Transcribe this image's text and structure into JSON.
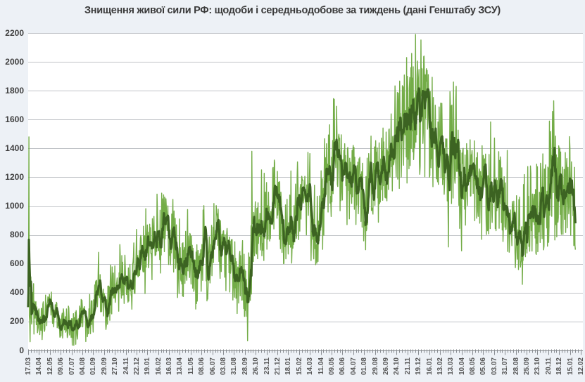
{
  "chart_data": {
    "type": "line",
    "title": "Знищення живої сили РФ: щодоби і середньодобове за тиждень (дані Генштабу ЗСУ)",
    "legend": false,
    "grid": true,
    "y_axis": {
      "min": 0,
      "max": 2200,
      "step": 200,
      "tick_labels": [
        "0",
        "200",
        "400",
        "600",
        "800",
        "1000",
        "1200",
        "1400",
        "1600",
        "1800",
        "2000",
        "2200"
      ]
    },
    "x_axis": {
      "tick_interval_days": 28,
      "minor_tick_days": 7,
      "tick_labels": [
        "17.03",
        "14.04",
        "12.05",
        "09.06",
        "07.07",
        "04.08",
        "01.09",
        "29.09",
        "27.10",
        "24.11",
        "22.12",
        "19.01",
        "16.02",
        "16.03",
        "13.04",
        "11.05",
        "08.06",
        "06.07",
        "03.08",
        "31.08",
        "28.09",
        "26.10",
        "23.11",
        "21.12",
        "18.01",
        "15.02",
        "14.03",
        "11.04",
        "09.05",
        "06.06",
        "04.07",
        "01.08",
        "29.08",
        "26.09",
        "24.10",
        "21.11",
        "19.12",
        "16.01",
        "13.02",
        "13.03",
        "10.04",
        "08.05",
        "05.06",
        "03.07",
        "31.07",
        "28.08",
        "25.09",
        "23.10",
        "20.11",
        "18.12",
        "15.01",
        "12.02"
      ]
    },
    "series": [
      {
        "name": "щодоби",
        "color": "#73ac47",
        "style": "thin jagged daily line"
      },
      {
        "name": "середньодобове за тиждень",
        "color": "#3c6322",
        "style": "thick 7-day moving average"
      }
    ],
    "days_total": 1414,
    "weekly_average": [
      400,
      300,
      250,
      190,
      160,
      200,
      250,
      270,
      300,
      290,
      250,
      180,
      160,
      190,
      220,
      190,
      160,
      140,
      170,
      190,
      220,
      230,
      200,
      230,
      280,
      350,
      450,
      380,
      300,
      270,
      330,
      400,
      440,
      470,
      510,
      540,
      490,
      450,
      480,
      520,
      570,
      630,
      660,
      680,
      700,
      720,
      760,
      800,
      830,
      850,
      870,
      840,
      800,
      740,
      680,
      640,
      600,
      580,
      610,
      640,
      620,
      560,
      520,
      540,
      620,
      680,
      650,
      620,
      660,
      720,
      790,
      700,
      640,
      600,
      570,
      550,
      540,
      560,
      540,
      480,
      420,
      400,
      560,
      780,
      880,
      900,
      930,
      880,
      920,
      980,
      1040,
      1090,
      1030,
      920,
      830,
      850,
      880,
      920,
      900,
      940,
      1000,
      1080,
      1120,
      1100,
      1020,
      900,
      810,
      850,
      950,
      1050,
      1150,
      1250,
      1350,
      1450,
      1380,
      1280,
      1200,
      1150,
      1120,
      1150,
      1180,
      1130,
      1090,
      1060,
      1030,
      1100,
      1180,
      1150,
      1160,
      1200,
      1260,
      1310,
      1280,
      1320,
      1380,
      1350,
      1450,
      1550,
      1520,
      1580,
      1640,
      1700,
      1760,
      1800,
      1680,
      1590,
      1700,
      1650,
      1590,
      1550,
      1500,
      1450,
      1480,
      1400,
      1320,
      1250,
      1350,
      1470,
      1350,
      1200,
      1060,
      1120,
      1250,
      1300,
      1180,
      1060,
      1090,
      1120,
      1140,
      1110,
      1120,
      1150,
      1180,
      1130,
      1070,
      1020,
      990,
      960,
      920,
      880,
      840,
      810,
      870,
      930,
      960,
      980,
      990,
      960,
      980,
      1000,
      1030,
      1050,
      1090,
      1150,
      1200,
      1130,
      1090,
      1100,
      1110,
      1120,
      1100,
      1000,
      870
    ],
    "daily_noise_amplitude_anchors": [
      [
        0,
        150
      ],
      [
        10,
        120
      ],
      [
        20,
        120
      ],
      [
        30,
        150
      ],
      [
        40,
        180
      ],
      [
        50,
        220
      ],
      [
        60,
        220
      ],
      [
        70,
        220
      ],
      [
        80,
        230
      ],
      [
        83,
        280
      ],
      [
        90,
        240
      ],
      [
        100,
        240
      ],
      [
        108,
        250
      ],
      [
        113,
        330
      ],
      [
        120,
        270
      ],
      [
        128,
        250
      ],
      [
        134,
        280
      ],
      [
        140,
        360
      ],
      [
        143,
        420
      ],
      [
        147,
        400
      ],
      [
        152,
        340
      ],
      [
        157,
        400
      ],
      [
        160,
        330
      ],
      [
        165,
        300
      ],
      [
        172,
        320
      ],
      [
        180,
        280
      ],
      [
        186,
        320
      ],
      [
        193,
        380
      ],
      [
        199,
        320
      ],
      [
        202,
        280
      ]
    ],
    "daily_extremes": [
      [
        0,
        300
      ],
      [
        2,
        1480
      ],
      [
        5,
        60
      ],
      [
        182,
        680
      ],
      [
        345,
        1090
      ],
      [
        578,
        1380
      ],
      [
        791,
        1740
      ],
      [
        978,
        2030
      ],
      [
        1001,
        2190
      ],
      [
        1018,
        1950
      ],
      [
        1099,
        1860
      ],
      [
        1120,
        690
      ],
      [
        1267,
        560
      ],
      [
        1358,
        1730
      ],
      [
        1411,
        735
      ]
    ]
  },
  "colors": {
    "page_background": "#edf1f6",
    "plot_background": "#ffffff",
    "gridline": "#c0c3c7",
    "axis": "#898d92",
    "daily_series": "#73ac47",
    "average_series": "#3c6322",
    "y_label": "#3f3f3f",
    "x_label": "#595959",
    "title": "#3a3a3a"
  }
}
